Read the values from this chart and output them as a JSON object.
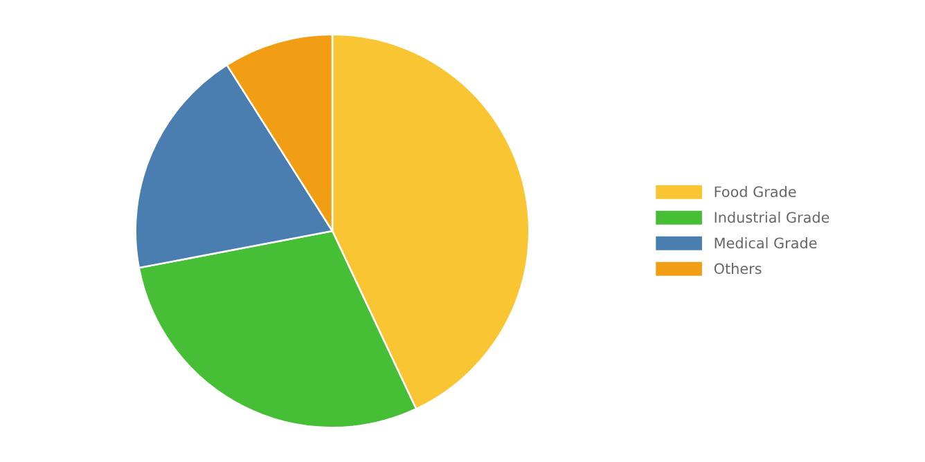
{
  "chart_data": {
    "type": "pie",
    "categories": [
      "Food Grade",
      "Industrial Grade",
      "Medical Grade",
      "Others"
    ],
    "values": [
      43,
      29,
      19,
      9
    ],
    "colors": [
      "#f9c532",
      "#46be35",
      "#4a7eb0",
      "#f29e14"
    ],
    "legend": "right"
  }
}
